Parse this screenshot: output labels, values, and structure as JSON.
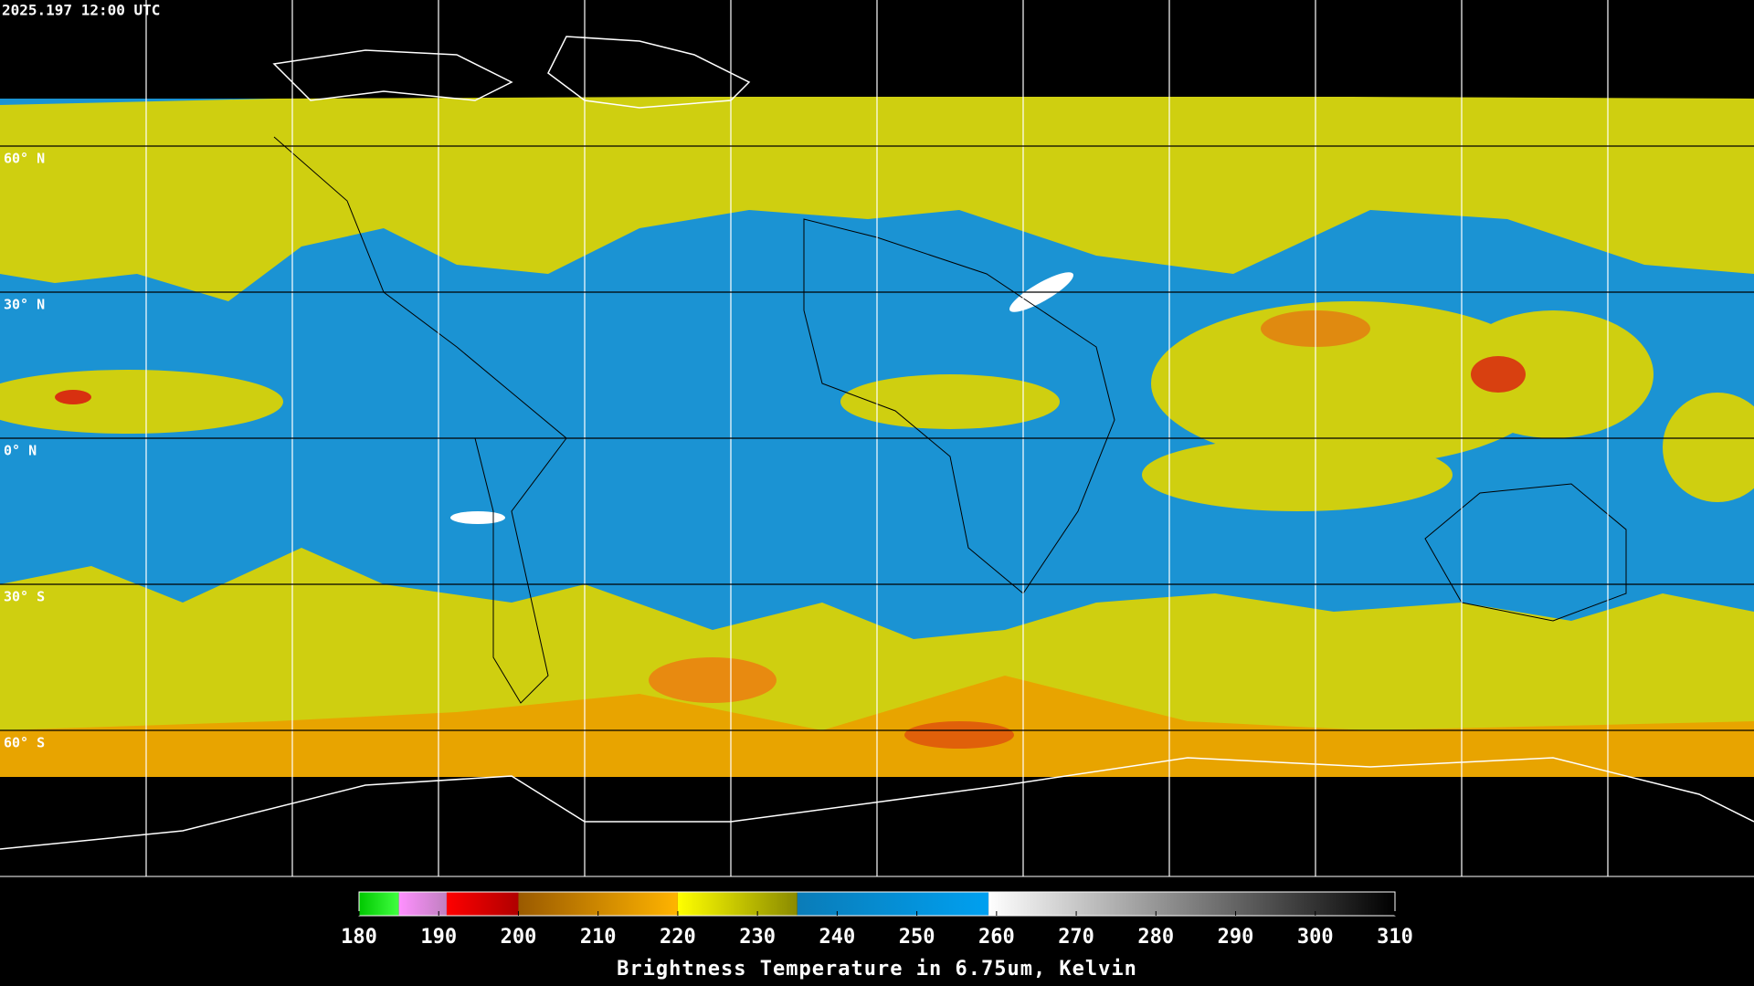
{
  "header": {
    "timestamp": "2025.197 12:00 UTC"
  },
  "map": {
    "lat_lines": [
      {
        "value": 60,
        "label": "60° N"
      },
      {
        "value": 30,
        "label": "30° N"
      },
      {
        "value": 0,
        "label": "0° N"
      },
      {
        "value": -30,
        "label": "30° S"
      },
      {
        "value": -60,
        "label": "60° S"
      }
    ]
  },
  "colorbar": {
    "label": "Brightness Temperature in 6.75um, Kelvin",
    "range": [
      180,
      310
    ],
    "ticks": [
      180,
      190,
      200,
      210,
      220,
      230,
      240,
      250,
      260,
      270,
      280,
      290,
      300,
      310
    ],
    "segments": [
      {
        "from": 180,
        "to": 185,
        "colors": [
          "#00c800",
          "#40ff40"
        ]
      },
      {
        "from": 185,
        "to": 191,
        "colors": [
          "#ff90ff",
          "#c080c0"
        ]
      },
      {
        "from": 191,
        "to": 200,
        "colors": [
          "#ff0000",
          "#b00000"
        ]
      },
      {
        "from": 200,
        "to": 220,
        "colors": [
          "#9a5a00",
          "#ffb400"
        ]
      },
      {
        "from": 220,
        "to": 235,
        "colors": [
          "#ffff00",
          "#8a8a00"
        ]
      },
      {
        "from": 235,
        "to": 259,
        "colors": [
          "#0a7cb8",
          "#00a0f0"
        ]
      },
      {
        "from": 259,
        "to": 310,
        "colors": [
          "#ffffff",
          "#000000"
        ]
      }
    ]
  }
}
